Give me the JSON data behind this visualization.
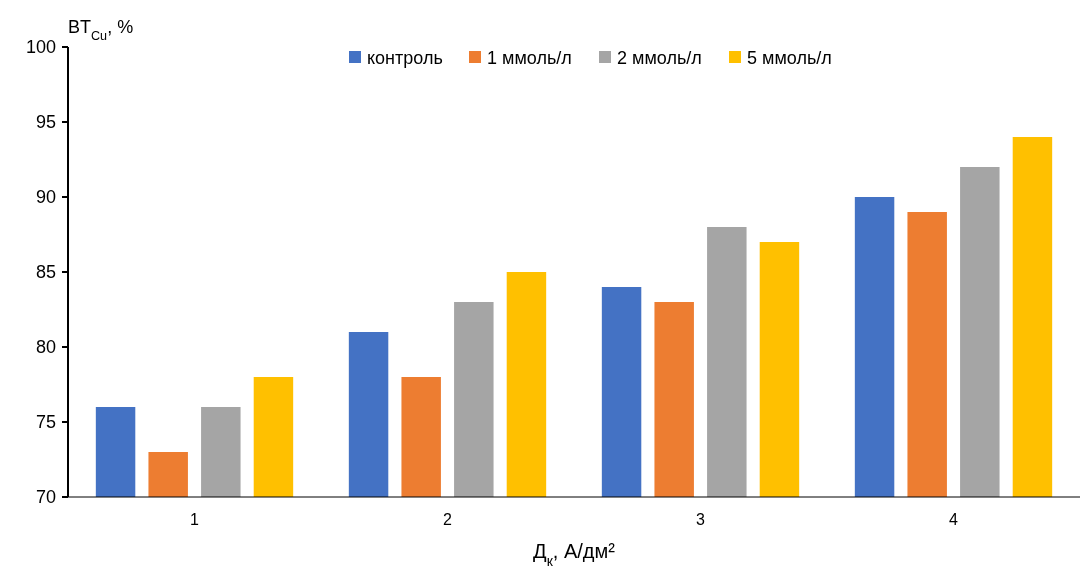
{
  "chart_data": {
    "type": "bar",
    "xlabel": "Д$_{к}$, А/дм²",
    "ylabel": "BT$_{Cu}$, %",
    "categories": [
      "1",
      "2",
      "3",
      "4"
    ],
    "series": [
      {
        "name": "контроль",
        "color": "#4472c4",
        "values": [
          76,
          81,
          84,
          90
        ]
      },
      {
        "name": "1 ммоль/л",
        "color": "#ed7d31",
        "values": [
          73,
          78,
          83,
          89
        ]
      },
      {
        "name": "2 ммоль/л",
        "color": "#a5a5a5",
        "values": [
          76,
          83,
          88,
          92
        ]
      },
      {
        "name": "5 ммоль/л",
        "color": "#ffc000",
        "values": [
          78,
          85,
          87,
          94
        ]
      }
    ],
    "ylim": [
      70,
      100
    ],
    "yticks": [
      70,
      75,
      80,
      85,
      90,
      95,
      100
    ],
    "grid": false,
    "legend": "top"
  }
}
